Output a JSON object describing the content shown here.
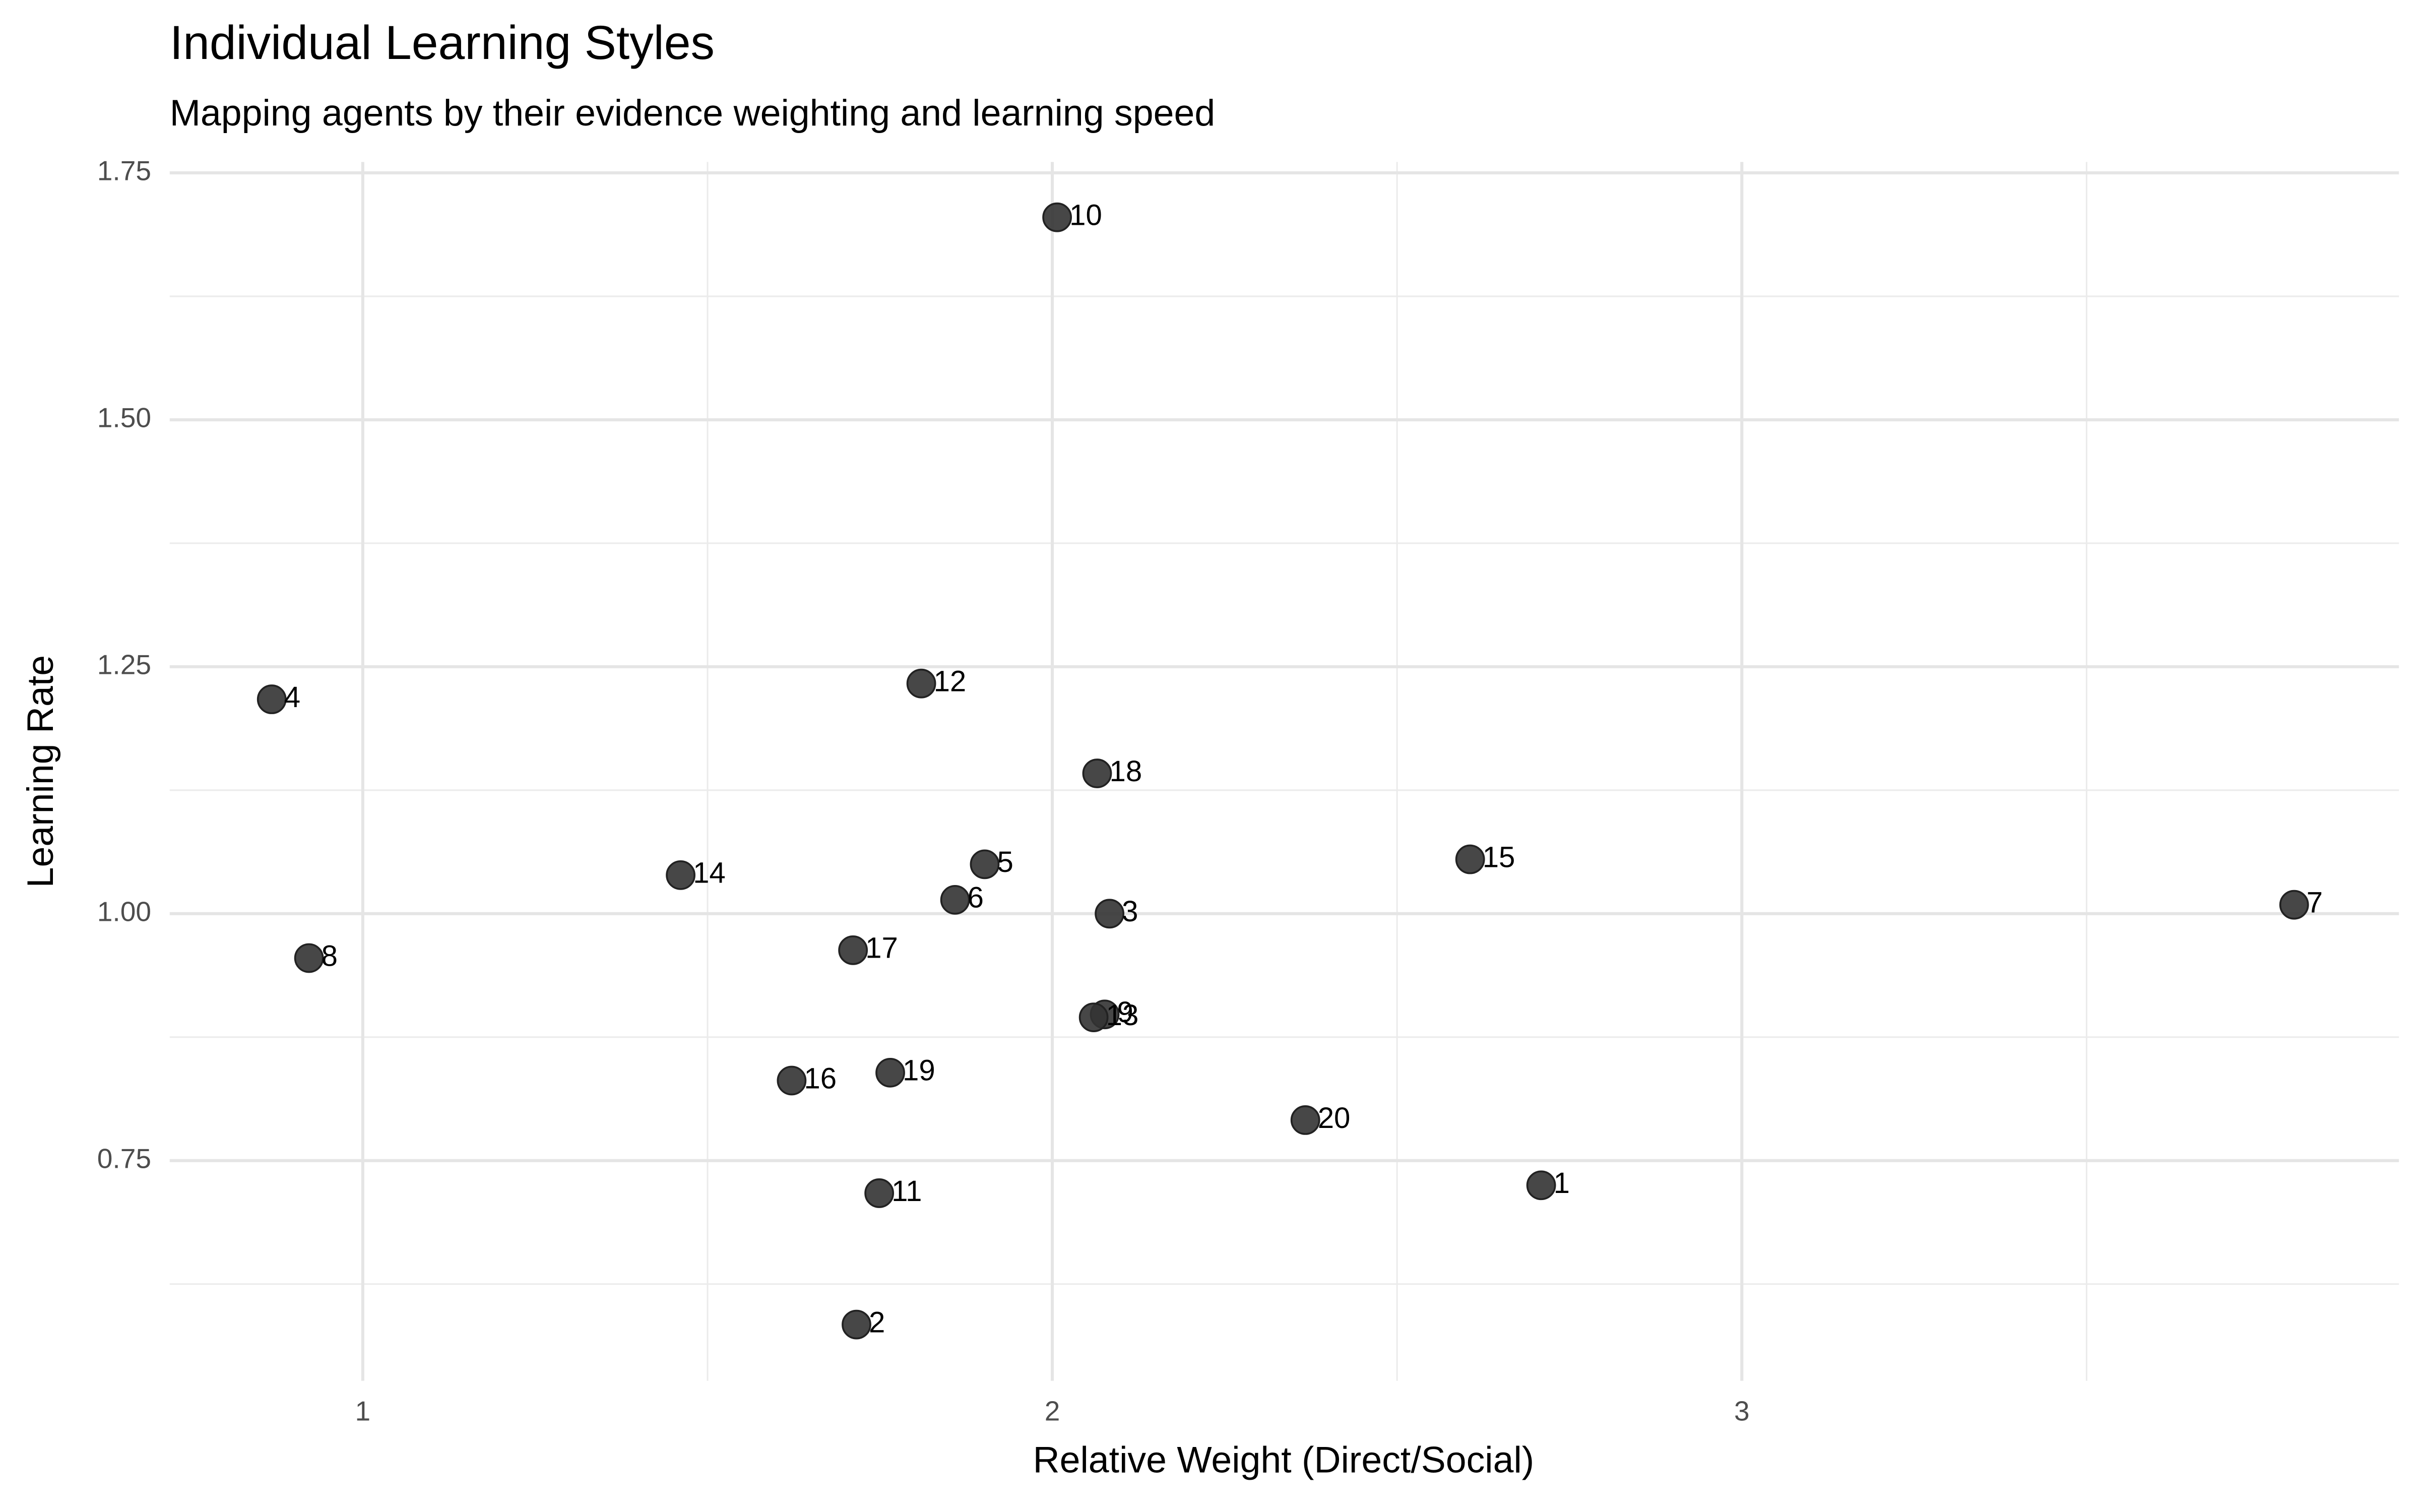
{
  "chart_data": {
    "type": "scatter",
    "title": "Individual Learning Styles",
    "subtitle": "Mapping agents by their evidence weighting and learning speed",
    "x_label": "Relative Weight (Direct/Social)",
    "y_label": "Learning Rate",
    "x": [
      2.709,
      1.716,
      2.083,
      0.868,
      1.902,
      1.859,
      3.801,
      0.922,
      2.076,
      2.007,
      1.749,
      1.81,
      2.06,
      1.461,
      2.606,
      1.622,
      1.711,
      2.065,
      1.765,
      2.367
    ],
    "y": [
      0.725,
      0.584,
      1.0,
      1.217,
      1.05,
      1.014,
      1.009,
      0.955,
      0.898,
      1.705,
      0.717,
      1.233,
      0.895,
      1.039,
      1.055,
      0.831,
      0.963,
      1.142,
      0.839,
      0.791
    ],
    "labels": [
      "1",
      "2",
      "3",
      "4",
      "5",
      "6",
      "7",
      "8",
      "9",
      "10",
      "11",
      "12",
      "13",
      "14",
      "15",
      "16",
      "17",
      "18",
      "19",
      "20"
    ],
    "color": "#333333",
    "xlim": [
      0.72,
      3.953
    ],
    "ylim": [
      0.527,
      1.761
    ],
    "xticks": [
      1,
      2,
      3
    ],
    "yticks": [
      0.75,
      {
        "value": 1.0,
        "label": "1.00"
      },
      1.25,
      {
        "value": 1.5,
        "label": "1.50"
      },
      1.75
    ],
    "x_minor_ticks": [
      1.5,
      2.5,
      3.5
    ],
    "y_minor_ticks": [
      0.625,
      0.875,
      1.125,
      1.375,
      1.625
    ],
    "grid": true
  }
}
